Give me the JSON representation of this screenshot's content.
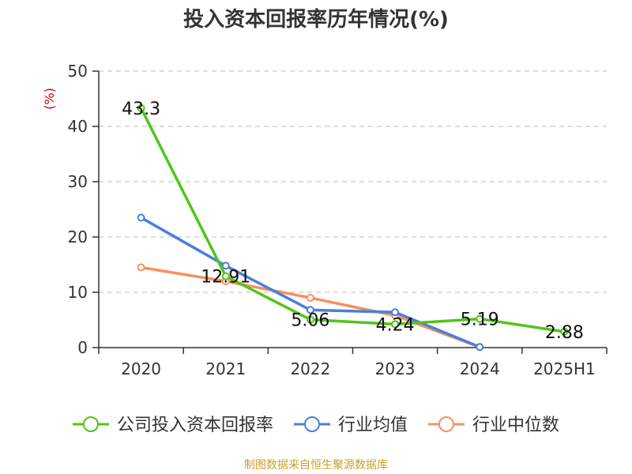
{
  "page": {
    "title": "投入资本回报率历年情况(%)",
    "source": "制图数据来自恒生聚源数据库"
  },
  "chart_data": {
    "type": "line",
    "title": "投入资本回报率历年情况(%)",
    "xlabel": "",
    "ylabel": "(%)",
    "ylim": [
      0,
      50
    ],
    "yticks": [
      0,
      10,
      20,
      30,
      40,
      50
    ],
    "grid": true,
    "legend_position": "bottom",
    "categories": [
      "2020",
      "2021",
      "2022",
      "2023",
      "2024",
      "2025H1"
    ],
    "series": [
      {
        "name": "公司投入资本回报率",
        "color": "#52c41a",
        "values": [
          43.3,
          12.91,
          5.06,
          4.24,
          5.19,
          2.88
        ],
        "labels": [
          "43.3",
          "12.91",
          "5.06",
          "4.24",
          "5.19",
          "2.88"
        ]
      },
      {
        "name": "行业均值",
        "color": "#4a7fdc",
        "values": [
          23.5,
          14.8,
          6.8,
          6.4,
          0.1,
          null
        ]
      },
      {
        "name": "行业中位数",
        "color": "#f4925d",
        "values": [
          14.5,
          12.0,
          9.0,
          5.8,
          0.1,
          null
        ]
      }
    ]
  }
}
